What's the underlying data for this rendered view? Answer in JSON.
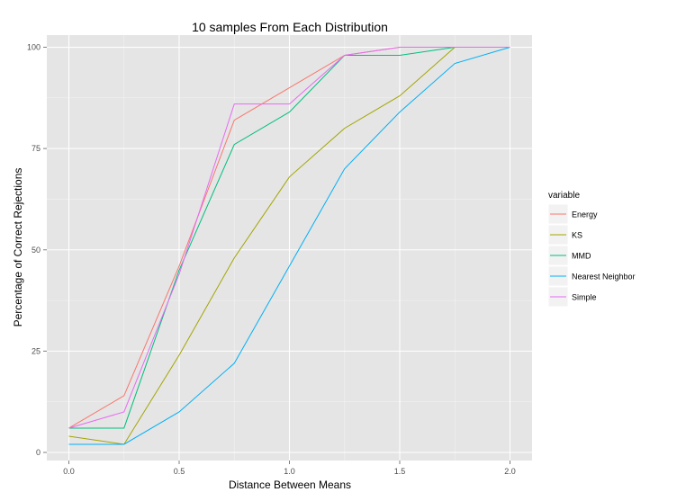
{
  "chart_data": {
    "type": "line",
    "title": "10 samples From Each Distribution",
    "xlabel": "Distance Between Means",
    "ylabel": "Percentage of Correct Rejections",
    "x": [
      0.0,
      0.25,
      0.5,
      0.75,
      1.0,
      1.25,
      1.5,
      1.75,
      2.0
    ],
    "xlim": [
      -0.1,
      2.1
    ],
    "ylim": [
      -2,
      103
    ],
    "xticks": [
      "0.0",
      "0.5",
      "1.0",
      "1.5",
      "2.0"
    ],
    "yticks": [
      "0",
      "25",
      "50",
      "75",
      "100"
    ],
    "grid": true,
    "legend": {
      "title": "variable",
      "position": "right"
    },
    "series": [
      {
        "name": "Energy",
        "color": "#F8766D",
        "values": [
          6,
          14,
          46,
          82,
          90,
          98,
          100,
          100,
          100
        ]
      },
      {
        "name": "KS",
        "color": "#A3A500",
        "values": [
          4,
          2,
          24,
          48,
          68,
          80,
          88,
          100,
          100
        ]
      },
      {
        "name": "MMD",
        "color": "#00BF7D",
        "values": [
          6,
          6,
          45,
          76,
          84,
          98,
          98,
          100,
          100
        ]
      },
      {
        "name": "Nearest Neighbor",
        "color": "#00B0F6",
        "values": [
          2,
          2,
          10,
          22,
          46,
          70,
          84,
          96,
          100
        ]
      },
      {
        "name": "Simple",
        "color": "#E76BF3",
        "values": [
          6,
          10,
          44,
          86,
          86,
          98,
          100,
          100,
          100
        ]
      }
    ]
  }
}
